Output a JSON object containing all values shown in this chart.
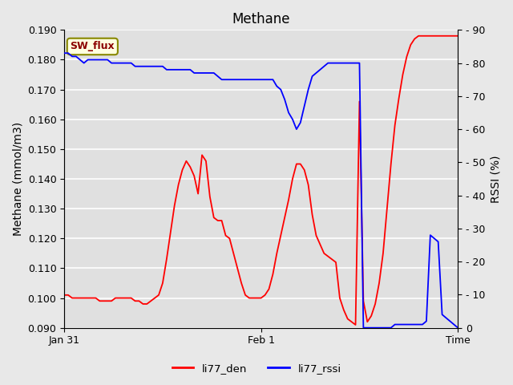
{
  "title": "Methane",
  "ylabel_left": "Methane (mmol/m3)",
  "ylabel_right": "RSSI (%)",
  "xlabel": "Time",
  "ylim_left": [
    0.09,
    0.19
  ],
  "ylim_right": [
    0,
    90
  ],
  "yticks_left": [
    0.09,
    0.1,
    0.11,
    0.12,
    0.13,
    0.14,
    0.15,
    0.16,
    0.17,
    0.18,
    0.19
  ],
  "yticks_right": [
    0,
    10,
    20,
    30,
    40,
    50,
    60,
    70,
    80,
    90
  ],
  "xtick_positions": [
    0,
    50,
    100
  ],
  "xtick_labels": [
    "Jan 31",
    "Feb 1",
    "Time"
  ],
  "legend_labels": [
    "li77_den",
    "li77_rssi"
  ],
  "sw_flux_label": "SW_flux",
  "bg_color": "#e8e8e8",
  "plot_bg_color": "#e0e0e0",
  "title_fontsize": 12,
  "label_fontsize": 10,
  "tick_fontsize": 9,
  "red_x": [
    0,
    1,
    2,
    3,
    4,
    5,
    6,
    7,
    8,
    9,
    10,
    11,
    12,
    13,
    14,
    15,
    16,
    17,
    18,
    19,
    20,
    21,
    22,
    23,
    24,
    25,
    26,
    27,
    28,
    29,
    30,
    31,
    32,
    33,
    34,
    35,
    36,
    37,
    38,
    39,
    40,
    41,
    42,
    43,
    44,
    45,
    46,
    47,
    48,
    49,
    50,
    51,
    52,
    53,
    54,
    55,
    56,
    57,
    58,
    59,
    60,
    61,
    62,
    63,
    64,
    65,
    66,
    67,
    68,
    69,
    70,
    71,
    72,
    73,
    74,
    75,
    76,
    77,
    78,
    79,
    80,
    81,
    82,
    83,
    84,
    85,
    86,
    87,
    88,
    89,
    90,
    91,
    92,
    93,
    94,
    95,
    96,
    97,
    98,
    99,
    100
  ],
  "red_y": [
    0.101,
    0.101,
    0.1,
    0.1,
    0.1,
    0.1,
    0.1,
    0.1,
    0.1,
    0.099,
    0.099,
    0.099,
    0.099,
    0.1,
    0.1,
    0.1,
    0.1,
    0.1,
    0.099,
    0.099,
    0.098,
    0.098,
    0.099,
    0.1,
    0.101,
    0.105,
    0.113,
    0.122,
    0.131,
    0.138,
    0.143,
    0.146,
    0.144,
    0.141,
    0.135,
    0.148,
    0.146,
    0.134,
    0.127,
    0.126,
    0.126,
    0.121,
    0.12,
    0.115,
    0.11,
    0.105,
    0.101,
    0.1,
    0.1,
    0.1,
    0.1,
    0.101,
    0.103,
    0.108,
    0.115,
    0.121,
    0.127,
    0.133,
    0.14,
    0.145,
    0.145,
    0.143,
    0.138,
    0.128,
    0.121,
    0.118,
    0.115,
    0.114,
    0.113,
    0.112,
    0.1,
    0.096,
    0.093,
    0.092,
    0.091,
    0.166,
    0.099,
    0.092,
    0.094,
    0.098,
    0.105,
    0.115,
    0.13,
    0.145,
    0.158,
    0.167,
    0.175,
    0.181,
    0.185,
    0.187,
    0.188,
    0.188,
    0.188,
    0.188,
    0.188,
    0.188,
    0.188,
    0.188,
    0.188,
    0.188,
    0.188
  ],
  "blue_x": [
    0,
    1,
    2,
    3,
    4,
    5,
    6,
    7,
    8,
    9,
    10,
    11,
    12,
    13,
    14,
    15,
    16,
    17,
    18,
    19,
    20,
    21,
    22,
    23,
    24,
    25,
    26,
    27,
    28,
    29,
    30,
    31,
    32,
    33,
    34,
    35,
    36,
    37,
    38,
    39,
    40,
    41,
    42,
    43,
    44,
    45,
    46,
    47,
    48,
    49,
    50,
    51,
    52,
    53,
    54,
    55,
    56,
    57,
    58,
    59,
    60,
    61,
    62,
    63,
    64,
    65,
    66,
    67,
    68,
    69,
    70,
    71,
    72,
    73,
    74,
    75,
    76,
    77,
    78,
    79,
    80,
    81,
    82,
    83,
    84,
    85,
    86,
    87,
    88,
    89,
    90,
    91,
    92,
    93,
    94,
    95,
    96,
    97,
    98,
    99,
    100
  ],
  "blue_y": [
    83,
    83,
    82,
    82,
    81,
    80,
    81,
    81,
    81,
    81,
    81,
    81,
    80,
    80,
    80,
    80,
    80,
    80,
    79,
    79,
    79,
    79,
    79,
    79,
    79,
    79,
    78,
    78,
    78,
    78,
    78,
    78,
    78,
    77,
    77,
    77,
    77,
    77,
    77,
    76,
    75,
    75,
    75,
    75,
    75,
    75,
    75,
    75,
    75,
    75,
    75,
    75,
    75,
    75,
    73,
    72,
    69,
    65,
    63,
    60,
    62,
    67,
    72,
    76,
    77,
    78,
    79,
    80,
    80,
    80,
    80,
    80,
    80,
    80,
    80,
    80,
    0,
    0,
    0,
    0,
    0,
    0,
    0,
    0,
    1,
    1,
    1,
    1,
    1,
    1,
    1,
    1,
    2,
    28,
    27,
    26,
    4,
    3,
    2,
    1,
    0
  ]
}
